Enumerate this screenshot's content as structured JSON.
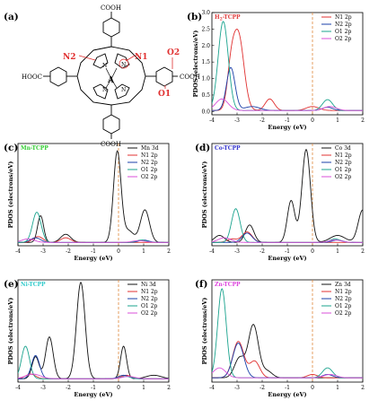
{
  "colors": {
    "N1": "#e03030",
    "N2": "#1a3fa8",
    "O1": "#1aa38e",
    "O2": "#d84fd8",
    "metal": "#111111",
    "fermi": "#e0883a",
    "title_H2": "#e04040",
    "title_Mn": "#33cc33",
    "title_Co": "#3333cc",
    "title_Ni": "#33cccc",
    "title_Zn": "#dd44dd"
  },
  "molecule": {
    "panel_label": "(a)",
    "cooh_top": "COOH",
    "cooh_bottom": "COOH",
    "cooh_right": "COOH",
    "hooc_left": "HOOC",
    "n_label": "N",
    "center_atom": "A",
    "label_N1": "N1",
    "label_N2": "N2",
    "label_O1": "O1",
    "label_O2": "O2"
  },
  "chart_data": [
    {
      "id": "b",
      "panel_label": "(b)",
      "type": "line",
      "title": "H2-TCPP",
      "title_main": "H",
      "title_sub": "2",
      "title_rest": "-TCPP",
      "xlabel": "Energy (eV)",
      "ylabel": "PDOS (electrons/eV)",
      "xlim": [
        -4,
        2
      ],
      "ylim": [
        -0.1,
        3.0
      ],
      "xticks": [
        "-4",
        "-3",
        "-2",
        "-1",
        "0",
        "1",
        "2"
      ],
      "yticks": [
        "0.0",
        "0.5",
        "1.0",
        "1.5",
        "2.0",
        "2.5",
        "3.0"
      ],
      "ytick_values": [
        0.0,
        0.5,
        1.0,
        1.5,
        2.0,
        2.5,
        3.0
      ],
      "legend": [
        "N1 2p",
        "N2 2p",
        "O1 2p",
        "O2 2p"
      ],
      "legend_colors": [
        "N1",
        "N2",
        "O1",
        "O2"
      ],
      "series": [
        {
          "name": "N1 2p",
          "color": "N1",
          "peaks": [
            [
              -2.95,
              2.3,
              0.22
            ],
            [
              -3.25,
              0.9,
              0.15
            ],
            [
              -1.7,
              0.35,
              0.18
            ],
            [
              0.0,
              0.12,
              0.25
            ]
          ]
        },
        {
          "name": "N2 2p",
          "color": "N2",
          "peaks": [
            [
              -3.25,
              1.3,
              0.17
            ],
            [
              -2.4,
              0.12,
              0.3
            ],
            [
              0.6,
              0.1,
              0.2
            ]
          ]
        },
        {
          "name": "O1 2p",
          "color": "O1",
          "peaks": [
            [
              -3.55,
              2.7,
              0.2
            ],
            [
              0.6,
              0.33,
              0.2
            ]
          ]
        },
        {
          "name": "O2 2p",
          "color": "O2",
          "peaks": [
            [
              -3.6,
              0.35,
              0.25
            ],
            [
              0.7,
              0.12,
              0.25
            ]
          ]
        }
      ]
    },
    {
      "id": "c",
      "panel_label": "(c)",
      "type": "line",
      "title": "Mn-TCPP",
      "title_color": "title_Mn",
      "xlabel": "Energy (eV)",
      "ylabel": "PDOS (electrons/eV)",
      "xlim": [
        -4,
        2
      ],
      "ylim": [
        -0.2,
        8.6
      ],
      "xticks": [
        "-4",
        "-3",
        "-2",
        "-1",
        "0",
        "1",
        "2"
      ],
      "yticks": [],
      "ytick_values": [],
      "legend": [
        "Mn 3d",
        "N1 2p",
        "N2 2p",
        "O1 2p",
        "O2 2p"
      ],
      "legend_colors": [
        "metal",
        "N1",
        "N2",
        "O1",
        "O2"
      ],
      "series": [
        {
          "name": "Mn 3d",
          "color": "metal",
          "peaks": [
            [
              -0.05,
              7.8,
              0.15
            ],
            [
              1.05,
              2.8,
              0.18
            ],
            [
              -3.1,
              2.3,
              0.12
            ],
            [
              -2.1,
              0.7,
              0.2
            ],
            [
              0.4,
              1.0,
              0.2
            ]
          ]
        },
        {
          "name": "N1 2p",
          "color": "N1",
          "peaks": [
            [
              -3.2,
              0.5,
              0.2
            ],
            [
              -2.1,
              0.4,
              0.2
            ]
          ]
        },
        {
          "name": "N2 2p",
          "color": "N2",
          "peaks": [
            [
              -3.3,
              0.4,
              0.2
            ],
            [
              1.0,
              0.2,
              0.2
            ]
          ]
        },
        {
          "name": "O1 2p",
          "color": "O1",
          "peaks": [
            [
              -3.25,
              2.6,
              0.17
            ],
            [
              0.9,
              0.2,
              0.2
            ]
          ]
        },
        {
          "name": "O2 2p",
          "color": "O2",
          "peaks": [
            [
              -3.6,
              0.3,
              0.25
            ],
            [
              0.8,
              0.15,
              0.25
            ]
          ]
        }
      ]
    },
    {
      "id": "d",
      "panel_label": "(d)",
      "type": "line",
      "title": "Co-TCPP",
      "title_color": "title_Co",
      "xlabel": "Energy (eV)",
      "ylabel": "PDOS (electrons/eV)",
      "xlim": [
        -4,
        2
      ],
      "ylim": [
        -0.2,
        8.6
      ],
      "xticks": [
        "-4",
        "-3",
        "-2",
        "-1",
        "0",
        "1",
        "2"
      ],
      "yticks": [],
      "ytick_values": [],
      "legend": [
        "Co 3d",
        "N1 2p",
        "N2 2p",
        "O1 2p",
        "O2 2p"
      ],
      "legend_colors": [
        "metal",
        "N1",
        "N2",
        "O1",
        "O2"
      ],
      "series": [
        {
          "name": "Co 3d",
          "color": "metal",
          "peaks": [
            [
              -0.25,
              8.0,
              0.17
            ],
            [
              -0.85,
              3.6,
              0.15
            ],
            [
              -2.5,
              1.5,
              0.17
            ],
            [
              1.0,
              0.6,
              0.3
            ],
            [
              2.0,
              2.8,
              0.18
            ],
            [
              -3.7,
              0.6,
              0.2
            ]
          ]
        },
        {
          "name": "N1 2p",
          "color": "N1",
          "peaks": [
            [
              -2.6,
              0.9,
              0.2
            ],
            [
              -3.2,
              0.3,
              0.2
            ]
          ]
        },
        {
          "name": "N2 2p",
          "color": "N2",
          "peaks": [
            [
              -2.6,
              0.8,
              0.2
            ],
            [
              1.0,
              0.2,
              0.2
            ]
          ]
        },
        {
          "name": "O1 2p",
          "color": "O1",
          "peaks": [
            [
              -3.05,
              2.9,
              0.17
            ],
            [
              0.9,
              0.3,
              0.2
            ]
          ]
        },
        {
          "name": "O2 2p",
          "color": "O2",
          "peaks": [
            [
              -3.5,
              0.4,
              0.25
            ],
            [
              0.9,
              0.2,
              0.25
            ]
          ]
        }
      ]
    },
    {
      "id": "e",
      "panel_label": "(e)",
      "type": "line",
      "title": "Ni-TCPP",
      "title_color": "title_Ni",
      "xlabel": "Energy (eV)",
      "ylabel": "PDOS (electrons/eV)",
      "xlim": [
        -4,
        2
      ],
      "ylim": [
        -0.2,
        8.6
      ],
      "xticks": [
        "-4",
        "-3",
        "-2",
        "-1",
        "0",
        "1",
        "2"
      ],
      "yticks": [],
      "ytick_values": [],
      "legend": [
        "Ni 3d",
        "N1 2p",
        "N2 2p",
        "O1 2p",
        "O2 2p"
      ],
      "legend_colors": [
        "metal",
        "N1",
        "N2",
        "O1",
        "O2"
      ],
      "series": [
        {
          "name": "Ni 3d",
          "color": "metal",
          "peaks": [
            [
              -1.5,
              8.3,
              0.17
            ],
            [
              -2.75,
              3.6,
              0.15
            ],
            [
              0.2,
              2.8,
              0.12
            ],
            [
              -3.3,
              1.9,
              0.14
            ],
            [
              1.4,
              0.3,
              0.3
            ]
          ]
        },
        {
          "name": "N1 2p",
          "color": "N1",
          "peaks": [
            [
              -3.5,
              0.4,
              0.2
            ],
            [
              0.3,
              0.3,
              0.2
            ]
          ]
        },
        {
          "name": "N2 2p",
          "color": "N2",
          "peaks": [
            [
              -3.3,
              2.0,
              0.16
            ],
            [
              0.2,
              0.3,
              0.2
            ]
          ]
        },
        {
          "name": "O1 2p",
          "color": "O1",
          "peaks": [
            [
              -3.7,
              2.8,
              0.16
            ],
            [
              0.3,
              0.2,
              0.2
            ]
          ]
        },
        {
          "name": "O2 2p",
          "color": "O2",
          "peaks": [
            [
              -3.4,
              0.4,
              0.3
            ],
            [
              0.4,
              0.2,
              0.25
            ]
          ]
        }
      ]
    },
    {
      "id": "f",
      "panel_label": "(f)",
      "type": "line",
      "title": "Zn-TCPP",
      "title_color": "title_Zn",
      "xlabel": "Energy (eV)",
      "ylabel": "PDOS (electrons/eV)",
      "xlim": [
        -4,
        2
      ],
      "ylim": [
        -0.1,
        3.0
      ],
      "xticks": [
        "-4",
        "-3",
        "-2",
        "-1",
        "0",
        "1",
        "2"
      ],
      "yticks": [],
      "ytick_values": [],
      "legend": [
        "Zn 3d",
        "N1 2p",
        "N2 2p",
        "O1 2p",
        "O2 2p"
      ],
      "legend_colors": [
        "metal",
        "N1",
        "N2",
        "O1",
        "O2"
      ],
      "series": [
        {
          "name": "Zn 3d",
          "color": "metal",
          "peaks": [
            [
              -2.35,
              1.6,
              0.2
            ],
            [
              -2.9,
              0.6,
              0.2
            ],
            [
              -1.8,
              0.2,
              0.2
            ]
          ]
        },
        {
          "name": "N1 2p",
          "color": "N1",
          "peaks": [
            [
              -2.95,
              1.1,
              0.22
            ],
            [
              -2.3,
              0.5,
              0.2
            ],
            [
              0.0,
              0.1,
              0.2
            ]
          ]
        },
        {
          "name": "N2 2p",
          "color": "N2",
          "peaks": [
            [
              -2.95,
              1.05,
              0.22
            ],
            [
              0.6,
              0.1,
              0.2
            ]
          ]
        },
        {
          "name": "O1 2p",
          "color": "O1",
          "peaks": [
            [
              -3.6,
              2.7,
              0.17
            ],
            [
              0.6,
              0.3,
              0.2
            ]
          ]
        },
        {
          "name": "O2 2p",
          "color": "O2",
          "peaks": [
            [
              -3.7,
              0.3,
              0.25
            ],
            [
              0.7,
              0.1,
              0.25
            ]
          ]
        }
      ]
    }
  ]
}
